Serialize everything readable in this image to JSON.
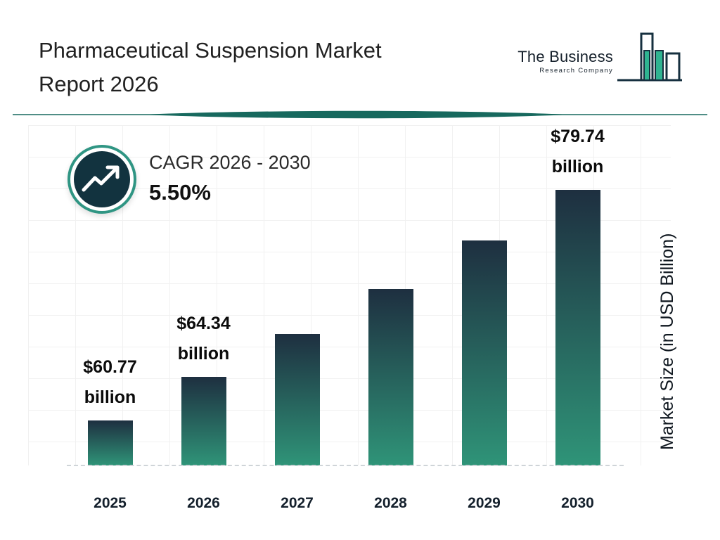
{
  "header": {
    "title_line1": "Pharmaceutical Suspension Market",
    "title_line2": "Report 2026",
    "logo": {
      "name_line1": "The Business",
      "name_line2": "Research Company"
    }
  },
  "cagr": {
    "label": "CAGR 2026 - 2030",
    "value": "5.50%"
  },
  "chart_data": {
    "type": "bar",
    "title": "Pharmaceutical Suspension Market Report 2026",
    "categories": [
      "2025",
      "2026",
      "2027",
      "2028",
      "2029",
      "2030"
    ],
    "values": [
      60.77,
      64.34,
      67.88,
      71.61,
      75.55,
      79.74
    ],
    "value_labels": [
      {
        "amount": "$60.77",
        "unit": "billion"
      },
      {
        "amount": "$64.34",
        "unit": "billion"
      },
      null,
      null,
      null,
      {
        "amount": "$79.74",
        "unit": "billion"
      }
    ],
    "xlabel": "",
    "ylabel": "Market Size (in USD Billion)",
    "ylim": [
      57,
      82
    ],
    "grid": true,
    "legend": "none",
    "bar_gradient_top": "#1e2f40",
    "bar_gradient_bottom": "#2f9478"
  },
  "colors": {
    "accent_teal": "#17695e",
    "ring_teal": "#2f9583",
    "badge_navy": "#12333f",
    "title_text": "#212121"
  }
}
